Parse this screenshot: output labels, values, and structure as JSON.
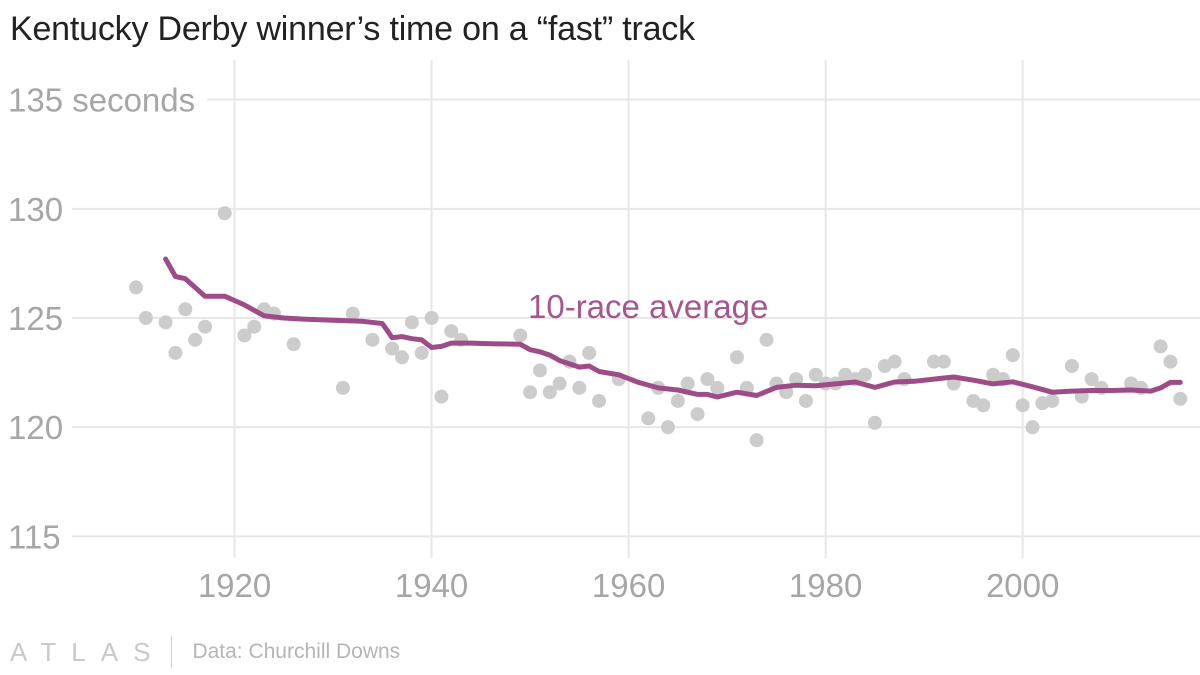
{
  "title": "Kentucky Derby winner’s time on a “fast” track",
  "footer": {
    "brand": "ATLAS",
    "source": "Data: Churchill Downs"
  },
  "colors": {
    "points": "#cccccc",
    "average_line": "#9e4c87",
    "annotation": "#a7558c",
    "grid": "#e7e7e7",
    "tick_text": "#a6a6a6"
  },
  "chart_data": {
    "type": "scatter",
    "title": "Kentucky Derby winner’s time on a “fast” track",
    "xlabel": "",
    "ylabel": "seconds",
    "xlim": [
      1903.5,
      2018
    ],
    "ylim": [
      113,
      137
    ],
    "grid": true,
    "x_ticks": [
      1920,
      1940,
      1960,
      1980,
      2000
    ],
    "x_tick_labels": [
      "1920",
      "1940",
      "1960",
      "1980",
      "2000"
    ],
    "y_ticks": [
      115,
      120,
      125,
      130,
      135
    ],
    "y_tick_labels": [
      "115",
      "120",
      "125",
      "130",
      "135 seconds"
    ],
    "annotation": "10-race average",
    "series": [
      {
        "name": "Winner's time",
        "kind": "points",
        "x": [
          1910,
          1911,
          1913,
          1914,
          1915,
          1916,
          1917,
          1919,
          1921,
          1922,
          1923,
          1924,
          1926,
          1931,
          1932,
          1934,
          1936,
          1937,
          1938,
          1939,
          1940,
          1941,
          1942,
          1943,
          1949,
          1950,
          1951,
          1952,
          1953,
          1954,
          1955,
          1956,
          1957,
          1959,
          1962,
          1963,
          1964,
          1965,
          1966,
          1967,
          1968,
          1969,
          1971,
          1972,
          1973,
          1974,
          1975,
          1976,
          1977,
          1978,
          1979,
          1980,
          1981,
          1982,
          1983,
          1984,
          1985,
          1986,
          1987,
          1988,
          1991,
          1992,
          1993,
          1995,
          1996,
          1997,
          1998,
          1999,
          2000,
          2001,
          2002,
          2003,
          2005,
          2006,
          2007,
          2008,
          2011,
          2012,
          2014,
          2015,
          2016
        ],
        "y": [
          126.4,
          125.0,
          124.8,
          123.4,
          125.4,
          124.0,
          124.6,
          129.8,
          124.2,
          124.6,
          125.4,
          125.2,
          123.8,
          121.8,
          125.2,
          124.0,
          123.6,
          123.2,
          124.8,
          123.4,
          125.0,
          121.4,
          124.4,
          124.0,
          124.2,
          121.6,
          122.6,
          121.6,
          122.0,
          123.0,
          121.8,
          123.4,
          121.2,
          122.2,
          120.4,
          121.8,
          120.0,
          121.2,
          122.0,
          120.6,
          122.2,
          121.8,
          123.2,
          121.8,
          119.4,
          124.0,
          122.0,
          121.6,
          122.2,
          121.2,
          122.4,
          122.0,
          122.0,
          122.4,
          122.2,
          122.4,
          120.2,
          122.8,
          123.0,
          122.2,
          123.0,
          123.0,
          122.0,
          121.2,
          121.0,
          122.4,
          122.2,
          123.3,
          121.0,
          120.0,
          121.1,
          121.2,
          122.8,
          121.4,
          122.2,
          121.8,
          122.0,
          121.8,
          123.7,
          123.0,
          121.3
        ]
      },
      {
        "name": "10-race average",
        "kind": "line",
        "x": [
          1913,
          1914,
          1915,
          1917,
          1919,
          1921,
          1923,
          1925,
          1927,
          1930,
          1933,
          1935,
          1936,
          1937,
          1938,
          1939,
          1940,
          1941,
          1942,
          1944,
          1946,
          1949,
          1950,
          1951,
          1952,
          1953,
          1955,
          1956,
          1957,
          1959,
          1961,
          1963,
          1965,
          1967,
          1968,
          1969,
          1971,
          1973,
          1975,
          1977,
          1979,
          1981,
          1983,
          1985,
          1987,
          1989,
          1991,
          1993,
          1995,
          1997,
          1999,
          2001,
          2003,
          2005,
          2007,
          2009,
          2011,
          2013,
          2014,
          2015,
          2016
        ],
        "y": [
          127.7,
          126.9,
          126.8,
          126.0,
          126.0,
          125.6,
          125.1,
          125.0,
          124.95,
          124.9,
          124.85,
          124.75,
          124.1,
          124.15,
          124.05,
          124.0,
          123.65,
          123.7,
          123.85,
          123.85,
          123.82,
          123.8,
          123.55,
          123.45,
          123.3,
          123.05,
          122.75,
          122.8,
          122.55,
          122.4,
          122.05,
          121.8,
          121.7,
          121.5,
          121.5,
          121.38,
          121.6,
          121.45,
          121.82,
          121.92,
          121.9,
          121.98,
          122.07,
          121.82,
          122.07,
          122.1,
          122.2,
          122.3,
          122.15,
          121.98,
          122.08,
          121.85,
          121.6,
          121.65,
          121.68,
          121.68,
          121.7,
          121.65,
          121.8,
          122.05,
          122.05
        ]
      }
    ]
  }
}
